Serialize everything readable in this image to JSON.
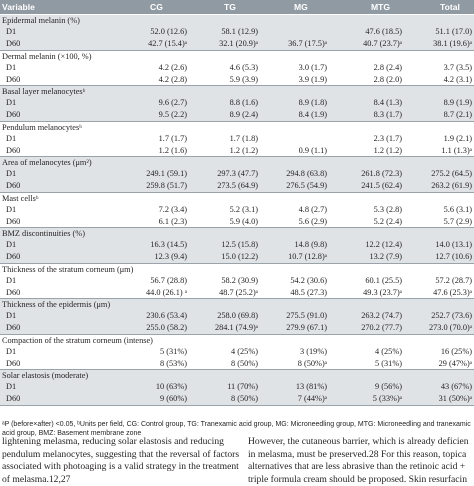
{
  "header": {
    "variable": "Variable",
    "cg": "CG",
    "tg": "TG",
    "mg": "MG",
    "mtg": "MTG",
    "total": "Total"
  },
  "sections": [
    {
      "title": "Epidermal melanin (%)",
      "rows": [
        {
          "label": "D1",
          "cg": "52.0 (12.6)",
          "tg": "58.1 (12.9)",
          "mg": "",
          "mtg": "47.6 (18.5)",
          "total": "51.1 (17.0)"
        },
        {
          "label": "D60",
          "cg": "42.7 (15.4)ᵃ",
          "tg": "32.1 (20.9)ᵃ",
          "mg": "36.7 (17.5)ᵃ",
          "mtg": "40.7 (23.7)ᵃ",
          "total": "38.1 (19.6)ᵃ"
        }
      ]
    },
    {
      "title": "Dermal melanin (×100, %)",
      "rows": [
        {
          "label": "D1",
          "cg": "4.2 (2.6)",
          "tg": "4.6 (5.3)",
          "mg": "3.0 (1.7)",
          "mtg": "2.8 (2.4)",
          "total": "3.7 (3.5)"
        },
        {
          "label": "D60",
          "cg": "4.2 (2.8)",
          "tg": "5.9 (3.9)",
          "mg": "3.9 (1.9)",
          "mtg": "2.8 (2.0)",
          "total": "4.2 (3.1)"
        }
      ]
    },
    {
      "title": "Basal layer melanocytesᵇ",
      "rows": [
        {
          "label": "D1",
          "cg": "9.6 (2.7)",
          "tg": "8.8 (1.6)",
          "mg": "8.9 (1.8)",
          "mtg": "8.4 (1.3)",
          "total": "8.9 (1.9)"
        },
        {
          "label": "D60",
          "cg": "9.5 (2.2)",
          "tg": "8.9 (2.4)",
          "mg": "8.4 (1.9)",
          "mtg": "8.3 (1.7)",
          "total": "8.7 (2.1)"
        }
      ]
    },
    {
      "title": "Pendulum melanocytesᵇ",
      "rows": [
        {
          "label": "D1",
          "cg": "1.7 (1.7)",
          "tg": "1.7 (1.8)",
          "mg": "",
          "mtg": "2.3 (1.7)",
          "total": "1.9 (2.1)"
        },
        {
          "label": "D60",
          "cg": "1.2 (1.6)",
          "tg": "1.2 (1.2)",
          "mg": "0.9 (1.1)",
          "mtg": "1.2 (1.2)",
          "total": "1.1 (1.3)ᵃ"
        }
      ]
    },
    {
      "title": "Area of melanocytes (μm²)",
      "rows": [
        {
          "label": "D1",
          "cg": "249.1 (59.1)",
          "tg": "297.3 (47.7)",
          "mg": "294.8 (63.8)",
          "mtg": "261.8 (72.3)",
          "total": "275.2 (64.5)"
        },
        {
          "label": "D60",
          "cg": "259.8 (51.7)",
          "tg": "273.5 (64.9)",
          "mg": "276.5 (54.9)",
          "mtg": "241.5 (62.4)",
          "total": "263.2 (61.9)"
        }
      ]
    },
    {
      "title": "Mast cellsᵇ",
      "rows": [
        {
          "label": "D1",
          "cg": "7.2 (3.4)",
          "tg": "5.2 (3.1)",
          "mg": "4.8 (2.7)",
          "mtg": "5.3 (2.8)",
          "total": "5.6 (3.1)"
        },
        {
          "label": "D60",
          "cg": "6.1 (2.3)",
          "tg": "5.9 (4.0)",
          "mg": "5.6 (2.9)",
          "mtg": "5.2 (2.4)",
          "total": "5.7 (2.9)"
        }
      ]
    },
    {
      "title": "BMZ discontinuities (%)",
      "rows": [
        {
          "label": "D1",
          "cg": "16.3 (14.5)",
          "tg": "12.5 (15.8)",
          "mg": "14.8 (9.8)",
          "mtg": "12.2 (12.4)",
          "total": "14.0 (13.1)"
        },
        {
          "label": "D60",
          "cg": "12.3 (9.4)",
          "tg": "15.0 (12.2)",
          "mg": "10.7 (12.8)ᵃ",
          "mtg": "13.2 (7.9)",
          "total": "12.7 (10.6)"
        }
      ]
    },
    {
      "title": "Thickness of the stratum corneum (μm)",
      "rows": [
        {
          "label": "D1",
          "cg": "56.7 (28.8)",
          "tg": "58.2 (30.9)",
          "mg": "54.2 (30.6)",
          "mtg": "60.1 (25.5)",
          "total": "57.2 (28.7)"
        },
        {
          "label": "D60",
          "cg": "44.0 (26.1) ᵃ",
          "tg": "48.7 (25.2)ᵃ",
          "mg": "48.5 (27.3)",
          "mtg": "49.3 (23.7)ᵃ",
          "total": "47.6 (25.3)ᵃ"
        }
      ]
    },
    {
      "title": "Thickness of the epidermis (μm)",
      "rows": [
        {
          "label": "D1",
          "cg": "230.6 (53.4)",
          "tg": "258.0 (69.8)",
          "mg": "275.5 (91.0)",
          "mtg": "263.2 (74.7)",
          "total": "252.7 (73.6)"
        },
        {
          "label": "D60",
          "cg": "255.0 (58.2)",
          "tg": "284.1 (74.9)ᵃ",
          "mg": "279.9 (67.1)",
          "mtg": "270.2 (77.7)",
          "total": "273.0 (70.0)ᵃ"
        }
      ]
    },
    {
      "title": "Compaction of the stratum corneum (intense)",
      "rows": [
        {
          "label": "D1",
          "cg": "5 (31%)",
          "tg": "4 (25%)",
          "mg": "3 (19%)",
          "mtg": "4 (25%)",
          "total": "16 (25%)"
        },
        {
          "label": "D60",
          "cg": "8 (53%)",
          "tg": "8 (50%)",
          "mg": "8 (50%)ᵃ",
          "mtg": "5 (31%)",
          "total": "29 (47%)ᵃ"
        }
      ]
    },
    {
      "title": "Solar elastosis (moderate)",
      "rows": [
        {
          "label": "D1",
          "cg": "10 (63%)",
          "tg": "11 (70%)",
          "mg": "13 (81%)",
          "mtg": "9 (56%)",
          "total": "43 (67%)"
        },
        {
          "label": "D60",
          "cg": "9 (60%)",
          "tg": "8 (50%)",
          "mg": "7 (44%)ᵃ",
          "mtg": "5 (33%)ᵃ",
          "total": "31 (50%)ᵃ"
        }
      ]
    }
  ],
  "footnote": {
    "line1": "ᵃP (before×after) <0.05, ᵇUnits per field, CG: Control group, TG: Tranexamic acid group, MG: Microneedling group, MTG: Microneedling and tranexamic",
    "line2": "acid group, BMZ: Basement membrane zone"
  },
  "body_left": [
    "lightening melasma, reducing solar elastosis and reducing",
    "pendulum melanocytes, suggesting that the reversal of factors",
    "associated with photoaging is a valid strategy in the treatment",
    "of melasma.12,27"
  ],
  "body_right": [
    "However, the cutaneous barrier, which is already deficien",
    "in melasma, must be preserved.28 For this reason, topica",
    "alternatives that are less abrasive than the retinoic acid +",
    "triple formula cream should be proposed. Skin resurfacin"
  ]
}
